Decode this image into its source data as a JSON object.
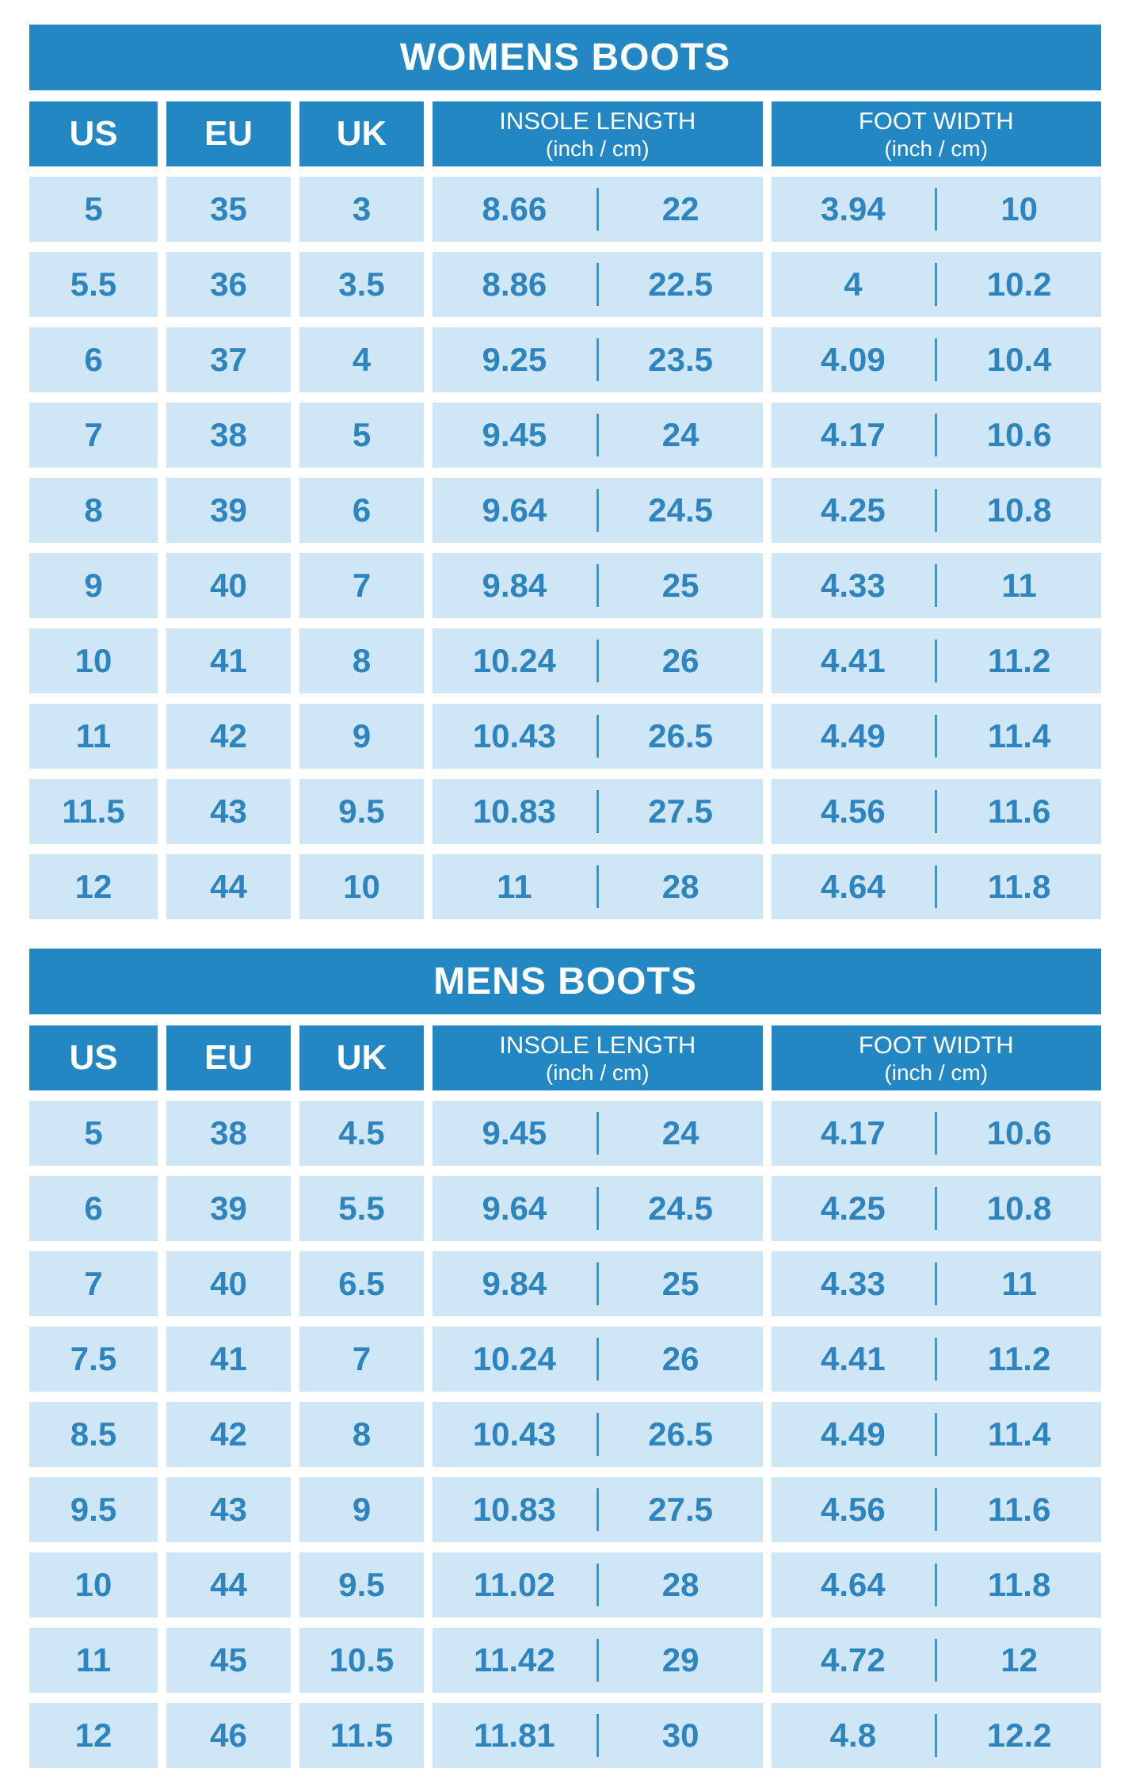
{
  "colors": {
    "header_bg": "#2387C3",
    "cell_bg": "#CEE6F6",
    "value_text": "#2D84BE",
    "divider": "#3F94C8",
    "header_text": "#FFFFFF",
    "page_bg": "#FFFFFF"
  },
  "chart_data": [
    {
      "type": "table",
      "title": "WOMENS BOOTS",
      "headers": {
        "us": "US",
        "eu": "EU",
        "uk": "UK",
        "insole_label": "INSOLE LENGTH",
        "insole_sub": "(inch / cm)",
        "foot_label": "FOOT WIDTH",
        "foot_sub": "(inch / cm)"
      },
      "rows": [
        {
          "us": "5",
          "eu": "35",
          "uk": "3",
          "insole_inch": "8.66",
          "insole_cm": "22",
          "foot_inch": "3.94",
          "foot_cm": "10"
        },
        {
          "us": "5.5",
          "eu": "36",
          "uk": "3.5",
          "insole_inch": "8.86",
          "insole_cm": "22.5",
          "foot_inch": "4",
          "foot_cm": "10.2"
        },
        {
          "us": "6",
          "eu": "37",
          "uk": "4",
          "insole_inch": "9.25",
          "insole_cm": "23.5",
          "foot_inch": "4.09",
          "foot_cm": "10.4"
        },
        {
          "us": "7",
          "eu": "38",
          "uk": "5",
          "insole_inch": "9.45",
          "insole_cm": "24",
          "foot_inch": "4.17",
          "foot_cm": "10.6"
        },
        {
          "us": "8",
          "eu": "39",
          "uk": "6",
          "insole_inch": "9.64",
          "insole_cm": "24.5",
          "foot_inch": "4.25",
          "foot_cm": "10.8"
        },
        {
          "us": "9",
          "eu": "40",
          "uk": "7",
          "insole_inch": "9.84",
          "insole_cm": "25",
          "foot_inch": "4.33",
          "foot_cm": "11"
        },
        {
          "us": "10",
          "eu": "41",
          "uk": "8",
          "insole_inch": "10.24",
          "insole_cm": "26",
          "foot_inch": "4.41",
          "foot_cm": "11.2"
        },
        {
          "us": "11",
          "eu": "42",
          "uk": "9",
          "insole_inch": "10.43",
          "insole_cm": "26.5",
          "foot_inch": "4.49",
          "foot_cm": "11.4"
        },
        {
          "us": "11.5",
          "eu": "43",
          "uk": "9.5",
          "insole_inch": "10.83",
          "insole_cm": "27.5",
          "foot_inch": "4.56",
          "foot_cm": "11.6"
        },
        {
          "us": "12",
          "eu": "44",
          "uk": "10",
          "insole_inch": "11",
          "insole_cm": "28",
          "foot_inch": "4.64",
          "foot_cm": "11.8"
        }
      ]
    },
    {
      "type": "table",
      "title": "MENS BOOTS",
      "headers": {
        "us": "US",
        "eu": "EU",
        "uk": "UK",
        "insole_label": "INSOLE LENGTH",
        "insole_sub": "(inch / cm)",
        "foot_label": "FOOT WIDTH",
        "foot_sub": "(inch / cm)"
      },
      "rows": [
        {
          "us": "5",
          "eu": "38",
          "uk": "4.5",
          "insole_inch": "9.45",
          "insole_cm": "24",
          "foot_inch": "4.17",
          "foot_cm": "10.6"
        },
        {
          "us": "6",
          "eu": "39",
          "uk": "5.5",
          "insole_inch": "9.64",
          "insole_cm": "24.5",
          "foot_inch": "4.25",
          "foot_cm": "10.8"
        },
        {
          "us": "7",
          "eu": "40",
          "uk": "6.5",
          "insole_inch": "9.84",
          "insole_cm": "25",
          "foot_inch": "4.33",
          "foot_cm": "11"
        },
        {
          "us": "7.5",
          "eu": "41",
          "uk": "7",
          "insole_inch": "10.24",
          "insole_cm": "26",
          "foot_inch": "4.41",
          "foot_cm": "11.2"
        },
        {
          "us": "8.5",
          "eu": "42",
          "uk": "8",
          "insole_inch": "10.43",
          "insole_cm": "26.5",
          "foot_inch": "4.49",
          "foot_cm": "11.4"
        },
        {
          "us": "9.5",
          "eu": "43",
          "uk": "9",
          "insole_inch": "10.83",
          "insole_cm": "27.5",
          "foot_inch": "4.56",
          "foot_cm": "11.6"
        },
        {
          "us": "10",
          "eu": "44",
          "uk": "9.5",
          "insole_inch": "11.02",
          "insole_cm": "28",
          "foot_inch": "4.64",
          "foot_cm": "11.8"
        },
        {
          "us": "11",
          "eu": "45",
          "uk": "10.5",
          "insole_inch": "11.42",
          "insole_cm": "29",
          "foot_inch": "4.72",
          "foot_cm": "12"
        },
        {
          "us": "12",
          "eu": "46",
          "uk": "11.5",
          "insole_inch": "11.81",
          "insole_cm": "30",
          "foot_inch": "4.8",
          "foot_cm": "12.2"
        }
      ]
    }
  ]
}
